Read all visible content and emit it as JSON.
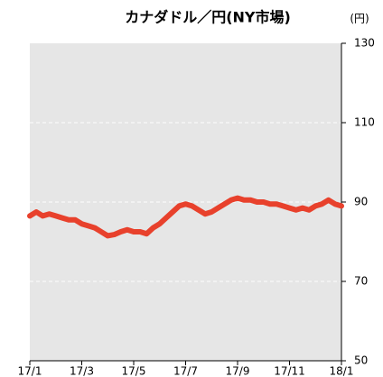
{
  "chart_data": {
    "type": "line",
    "title": "カナダドル／円(NY市場)",
    "y_unit": "(円)",
    "x": [
      0,
      0.25,
      0.5,
      0.75,
      1,
      1.25,
      1.5,
      1.75,
      2,
      2.25,
      2.5,
      2.75,
      3,
      3.25,
      3.5,
      3.75,
      4,
      4.25,
      4.5,
      4.75,
      5,
      5.25,
      5.5,
      5.75,
      6,
      6.25,
      6.5,
      6.75,
      7,
      7.25,
      7.5,
      7.75,
      8,
      8.25,
      8.5,
      8.75,
      9,
      9.25,
      9.5,
      9.75,
      10,
      10.25,
      10.5,
      10.75,
      11,
      11.25,
      11.5,
      11.75,
      12
    ],
    "series": [
      {
        "name": "カナダドル／円",
        "color": "#e8412c",
        "values": [
          86.5,
          87.5,
          86.5,
          87,
          86.5,
          86,
          85.5,
          85.5,
          84.5,
          84,
          83.5,
          82.5,
          81.5,
          81.8,
          82.5,
          83,
          82.5,
          82.5,
          82,
          83.5,
          84.5,
          86,
          87.5,
          89,
          89.5,
          89,
          88,
          87,
          87.5,
          88.5,
          89.5,
          90.5,
          91,
          90.5,
          90.5,
          90,
          90,
          89.5,
          89.5,
          89,
          88.5,
          88,
          88.5,
          88,
          89,
          89.5,
          90.5,
          89.5,
          89
        ]
      }
    ],
    "xlim": [
      0,
      12
    ],
    "xticks": [
      {
        "value": 0,
        "label": "17/1"
      },
      {
        "value": 2,
        "label": "17/3"
      },
      {
        "value": 4,
        "label": "17/5"
      },
      {
        "value": 6,
        "label": "17/7"
      },
      {
        "value": 8,
        "label": "17/9"
      },
      {
        "value": 10,
        "label": "17/11"
      },
      {
        "value": 12,
        "label": "18/1"
      }
    ],
    "ylim": [
      50,
      130
    ],
    "yticks": [
      50,
      70,
      90,
      110,
      130
    ],
    "grid": true
  }
}
